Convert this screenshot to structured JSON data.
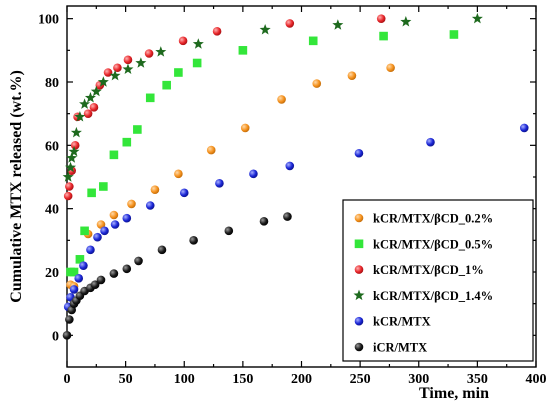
{
  "chart_data": {
    "type": "scatter",
    "xlabel": "Time, min",
    "ylabel": "Cumulative MTX released (wt.%)",
    "xlim": [
      0,
      400
    ],
    "ylim": [
      -10,
      104
    ],
    "xticks": [
      0,
      50,
      100,
      150,
      200,
      250,
      300,
      350,
      400
    ],
    "yticks": [
      0,
      20,
      40,
      60,
      80,
      100
    ],
    "grid": false,
    "legend_position": "bottom-right",
    "series": [
      {
        "name": "kCR/MTX/βCD_0.2%",
        "marker": "circle",
        "color": "#f5921e",
        "x": [
          3,
          6,
          18,
          29,
          40,
          55,
          75,
          95,
          123,
          152,
          183,
          213,
          243,
          276
        ],
        "y": [
          16,
          15.5,
          32,
          35,
          38,
          41.5,
          46,
          51,
          58.5,
          65.5,
          74.5,
          79.5,
          82,
          84.5
        ]
      },
      {
        "name": "kCR/MTX/βCD_0.5%",
        "marker": "square",
        "color": "#33e63a",
        "x": [
          3,
          6,
          11,
          15,
          21,
          31,
          40,
          51,
          60,
          71,
          85,
          95,
          111,
          150,
          210,
          270,
          330
        ],
        "y": [
          20,
          20,
          24,
          33,
          45,
          47,
          57,
          61,
          65,
          75,
          79,
          83,
          86,
          90,
          93,
          94.5,
          95
        ]
      },
      {
        "name": "kCR/MTX/βCD_1%",
        "marker": "circle",
        "color": "#e8262a",
        "x": [
          1,
          2,
          4,
          7,
          9,
          18,
          23,
          28,
          35,
          43,
          52,
          70,
          99,
          128,
          190,
          268
        ],
        "y": [
          44,
          47,
          52,
          60,
          69,
          70,
          72,
          79,
          83,
          84.5,
          87,
          89,
          93,
          96,
          98.5,
          100
        ]
      },
      {
        "name": "kCR/MTX/βCD_1.4%",
        "marker": "star",
        "color": "#1e6a1e",
        "x": [
          1,
          3,
          4,
          6,
          8,
          11,
          15,
          20,
          25,
          31,
          41,
          52,
          63,
          80,
          112,
          169,
          231,
          289,
          350
        ],
        "y": [
          50,
          53,
          56,
          58,
          64,
          69,
          73,
          75,
          77,
          80,
          82,
          84,
          86,
          89.5,
          92,
          96.5,
          98,
          99,
          100
        ]
      },
      {
        "name": "kCR/MTX",
        "marker": "circle",
        "color": "#1a26d6",
        "x": [
          1,
          3,
          6,
          10,
          14,
          20,
          26,
          32,
          41,
          51,
          71,
          100,
          130,
          159,
          190,
          249,
          310,
          390
        ],
        "y": [
          9,
          12,
          14.5,
          18,
          22,
          27,
          31,
          33,
          35,
          37,
          41,
          45,
          48,
          51,
          53.5,
          57.5,
          61,
          65.5
        ]
      },
      {
        "name": "iCR/MTX",
        "marker": "circle",
        "color": "#1a1a1a",
        "x": [
          0,
          2,
          4,
          6,
          8,
          11,
          15,
          20,
          24,
          29,
          40,
          51,
          61,
          81,
          108,
          138,
          168,
          188
        ],
        "y": [
          0,
          5,
          8,
          10,
          11,
          12.5,
          14,
          15,
          16,
          17.5,
          19.5,
          21,
          23.5,
          27,
          30,
          33,
          36,
          37.5
        ]
      }
    ]
  }
}
